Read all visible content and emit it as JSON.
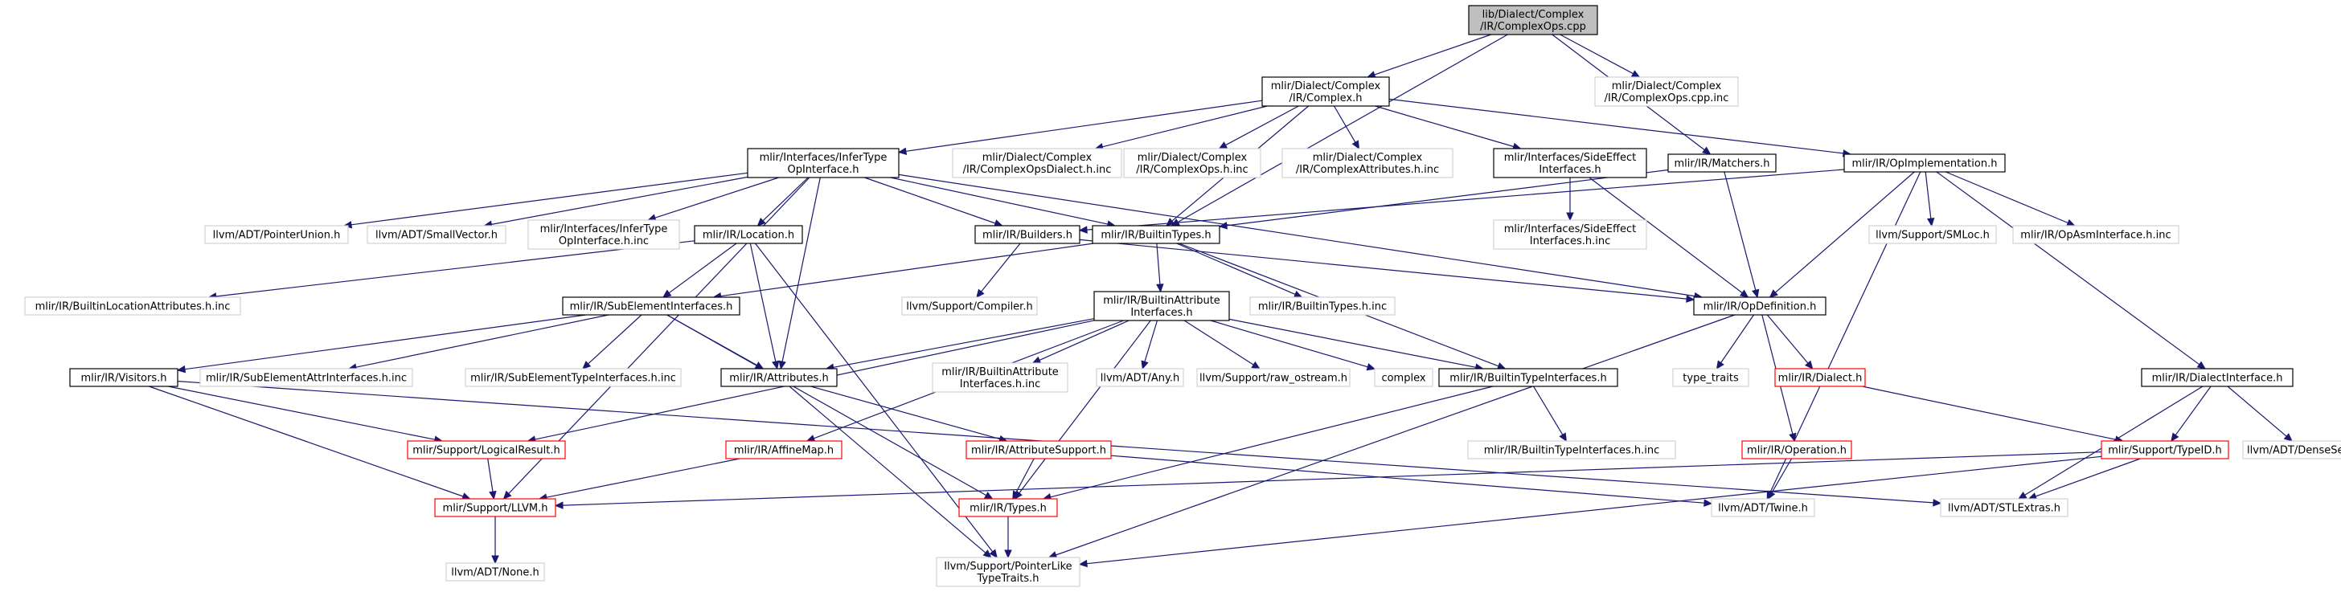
{
  "diagram": {
    "root": "complexops_cpp",
    "colors": {
      "background": "#ffffff",
      "root_fill": "#bfbfbf",
      "root_border": "#000000",
      "normal_border": "#000000",
      "missing_border": "#d3d3d3",
      "truncated_border": "#ff0000",
      "edge": "#191970",
      "text": "#000000"
    },
    "nodes": [
      {
        "id": "complexops_cpp",
        "kind": "root",
        "lines": [
          "lib/Dialect/Complex",
          "/IR/ComplexOps.cpp"
        ]
      },
      {
        "id": "complex_h",
        "kind": "normal",
        "lines": [
          "mlir/Dialect/Complex",
          "/IR/Complex.h"
        ]
      },
      {
        "id": "complexops_cpp_inc",
        "kind": "missing",
        "lines": [
          "mlir/Dialect/Complex",
          "/IR/ComplexOps.cpp.inc"
        ]
      },
      {
        "id": "infertype",
        "kind": "normal",
        "lines": [
          "mlir/Interfaces/InferType",
          "OpInterface.h"
        ]
      },
      {
        "id": "complexopsdialect_inc",
        "kind": "missing",
        "lines": [
          "mlir/Dialect/Complex",
          "/IR/ComplexOpsDialect.h.inc"
        ]
      },
      {
        "id": "complexops_h_inc",
        "kind": "missing",
        "lines": [
          "mlir/Dialect/Complex",
          "/IR/ComplexOps.h.inc"
        ]
      },
      {
        "id": "complexattrs_inc",
        "kind": "missing",
        "lines": [
          "mlir/Dialect/Complex",
          "/IR/ComplexAttributes.h.inc"
        ]
      },
      {
        "id": "sideeffect",
        "kind": "normal",
        "lines": [
          "mlir/Interfaces/SideEffect",
          "Interfaces.h"
        ]
      },
      {
        "id": "matchers",
        "kind": "normal",
        "lines": [
          "mlir/IR/Matchers.h"
        ]
      },
      {
        "id": "opimpl",
        "kind": "normal",
        "lines": [
          "mlir/IR/OpImplementation.h"
        ]
      },
      {
        "id": "pointerunion",
        "kind": "missing",
        "lines": [
          "llvm/ADT/PointerUnion.h"
        ]
      },
      {
        "id": "smallvector",
        "kind": "missing",
        "lines": [
          "llvm/ADT/SmallVector.h"
        ]
      },
      {
        "id": "infertype_inc",
        "kind": "missing",
        "lines": [
          "mlir/Interfaces/InferType",
          "OpInterface.h.inc"
        ]
      },
      {
        "id": "location",
        "kind": "normal",
        "lines": [
          "mlir/IR/Location.h"
        ]
      },
      {
        "id": "builders",
        "kind": "normal",
        "lines": [
          "mlir/IR/Builders.h"
        ]
      },
      {
        "id": "builtintypes",
        "kind": "normal",
        "lines": [
          "mlir/IR/BuiltinTypes.h"
        ]
      },
      {
        "id": "sideeffect_inc",
        "kind": "missing",
        "lines": [
          "mlir/Interfaces/SideEffect",
          "Interfaces.h.inc"
        ]
      },
      {
        "id": "smloc",
        "kind": "missing",
        "lines": [
          "llvm/Support/SMLoc.h"
        ]
      },
      {
        "id": "opasm_inc",
        "kind": "missing",
        "lines": [
          "mlir/IR/OpAsmInterface.h.inc"
        ]
      },
      {
        "id": "builtinlocattrs_inc",
        "kind": "missing",
        "lines": [
          "mlir/IR/BuiltinLocationAttributes.h.inc"
        ]
      },
      {
        "id": "compiler",
        "kind": "missing",
        "lines": [
          "llvm/Support/Compiler.h"
        ]
      },
      {
        "id": "builtinattrifaces",
        "kind": "normal",
        "lines": [
          "mlir/IR/BuiltinAttribute",
          "Interfaces.h"
        ]
      },
      {
        "id": "builtintypes_inc",
        "kind": "missing",
        "lines": [
          "mlir/IR/BuiltinTypes.h.inc"
        ]
      },
      {
        "id": "opdefinition",
        "kind": "normal",
        "lines": [
          "mlir/IR/OpDefinition.h"
        ]
      },
      {
        "id": "subelement",
        "kind": "normal",
        "lines": [
          "mlir/IR/SubElementInterfaces.h"
        ]
      },
      {
        "id": "dialectiface",
        "kind": "normal",
        "lines": [
          "mlir/IR/DialectInterface.h"
        ]
      },
      {
        "id": "visitors",
        "kind": "normal",
        "lines": [
          "mlir/IR/Visitors.h"
        ]
      },
      {
        "id": "subelemattr_inc",
        "kind": "missing",
        "lines": [
          "mlir/IR/SubElementAttrInterfaces.h.inc"
        ]
      },
      {
        "id": "subelemtype_inc",
        "kind": "missing",
        "lines": [
          "mlir/IR/SubElementTypeInterfaces.h.inc"
        ]
      },
      {
        "id": "attributes",
        "kind": "normal",
        "lines": [
          "mlir/IR/Attributes.h"
        ]
      },
      {
        "id": "builtinattrifaces_inc",
        "kind": "missing",
        "lines": [
          "mlir/IR/BuiltinAttribute",
          "Interfaces.h.inc"
        ]
      },
      {
        "id": "any",
        "kind": "missing",
        "lines": [
          "llvm/ADT/Any.h"
        ]
      },
      {
        "id": "raw_ostream",
        "kind": "missing",
        "lines": [
          "llvm/Support/raw_ostream.h"
        ]
      },
      {
        "id": "complex",
        "kind": "missing",
        "lines": [
          "complex"
        ]
      },
      {
        "id": "builtintypeifaces",
        "kind": "normal",
        "lines": [
          "mlir/IR/BuiltinTypeInterfaces.h"
        ]
      },
      {
        "id": "type_traits",
        "kind": "missing",
        "lines": [
          "type_traits"
        ]
      },
      {
        "id": "dialect",
        "kind": "truncated",
        "lines": [
          "mlir/IR/Dialect.h"
        ]
      },
      {
        "id": "logicalresult",
        "kind": "truncated",
        "lines": [
          "mlir/Support/LogicalResult.h"
        ]
      },
      {
        "id": "affinemap",
        "kind": "truncated",
        "lines": [
          "mlir/IR/AffineMap.h"
        ]
      },
      {
        "id": "attrsupport",
        "kind": "truncated",
        "lines": [
          "mlir/IR/AttributeSupport.h"
        ]
      },
      {
        "id": "builtintypeifaces_inc",
        "kind": "missing",
        "lines": [
          "mlir/IR/BuiltinTypeInterfaces.h.inc"
        ]
      },
      {
        "id": "operation",
        "kind": "truncated",
        "lines": [
          "mlir/IR/Operation.h"
        ]
      },
      {
        "id": "typeid",
        "kind": "truncated",
        "lines": [
          "mlir/Support/TypeID.h"
        ]
      },
      {
        "id": "denseset",
        "kind": "missing",
        "lines": [
          "llvm/ADT/DenseSet.h"
        ]
      },
      {
        "id": "llvm_h",
        "kind": "truncated",
        "lines": [
          "mlir/Support/LLVM.h"
        ]
      },
      {
        "id": "types",
        "kind": "truncated",
        "lines": [
          "mlir/IR/Types.h"
        ]
      },
      {
        "id": "twine",
        "kind": "missing",
        "lines": [
          "llvm/ADT/Twine.h"
        ]
      },
      {
        "id": "stlextras",
        "kind": "missing",
        "lines": [
          "llvm/ADT/STLExtras.h"
        ]
      },
      {
        "id": "none",
        "kind": "missing",
        "lines": [
          "llvm/ADT/None.h"
        ]
      },
      {
        "id": "pointerlike",
        "kind": "missing",
        "lines": [
          "llvm/Support/PointerLike",
          "TypeTraits.h"
        ]
      }
    ],
    "edges": [
      [
        "complexops_cpp",
        "complex_h"
      ],
      [
        "complexops_cpp",
        "complexops_cpp_inc"
      ],
      [
        "complexops_cpp",
        "matchers"
      ],
      [
        "complexops_cpp",
        "builtintypes"
      ],
      [
        "complex_h",
        "infertype"
      ],
      [
        "complex_h",
        "complexopsdialect_inc"
      ],
      [
        "complex_h",
        "complexops_h_inc"
      ],
      [
        "complex_h",
        "complexattrs_inc"
      ],
      [
        "complex_h",
        "sideeffect"
      ],
      [
        "complex_h",
        "opimpl"
      ],
      [
        "complex_h",
        "builtintypes"
      ],
      [
        "infertype",
        "pointerunion"
      ],
      [
        "infertype",
        "smallvector"
      ],
      [
        "infertype",
        "infertype_inc"
      ],
      [
        "infertype",
        "location"
      ],
      [
        "infertype",
        "builders"
      ],
      [
        "infertype",
        "builtintypes"
      ],
      [
        "infertype",
        "opdefinition"
      ],
      [
        "infertype",
        "attributes"
      ],
      [
        "infertype",
        "llvm_h"
      ],
      [
        "sideeffect",
        "sideeffect_inc"
      ],
      [
        "sideeffect",
        "opdefinition"
      ],
      [
        "matchers",
        "builtintypes"
      ],
      [
        "matchers",
        "opdefinition"
      ],
      [
        "opimpl",
        "builders"
      ],
      [
        "opimpl",
        "smloc"
      ],
      [
        "opimpl",
        "opasm_inc"
      ],
      [
        "opimpl",
        "opdefinition"
      ],
      [
        "opimpl",
        "dialectiface"
      ],
      [
        "opimpl",
        "twine"
      ],
      [
        "location",
        "builtinlocattrs_inc"
      ],
      [
        "location",
        "subelement"
      ],
      [
        "location",
        "attributes"
      ],
      [
        "location",
        "pointerlike"
      ],
      [
        "builders",
        "compiler"
      ],
      [
        "builders",
        "opdefinition"
      ],
      [
        "builtintypes",
        "builtinattrifaces"
      ],
      [
        "builtintypes",
        "builtintypes_inc"
      ],
      [
        "builtintypes",
        "builtintypeifaces"
      ],
      [
        "builtintypes",
        "subelement"
      ],
      [
        "builtinattrifaces",
        "builtinattrifaces_inc"
      ],
      [
        "builtinattrifaces",
        "any"
      ],
      [
        "builtinattrifaces",
        "raw_ostream"
      ],
      [
        "builtinattrifaces",
        "complex"
      ],
      [
        "builtinattrifaces",
        "builtintypeifaces"
      ],
      [
        "builtinattrifaces",
        "attributes"
      ],
      [
        "builtinattrifaces",
        "affinemap"
      ],
      [
        "builtinattrifaces",
        "types"
      ],
      [
        "builtinattrifaces",
        "logicalresult"
      ],
      [
        "opdefinition",
        "type_traits"
      ],
      [
        "opdefinition",
        "dialect"
      ],
      [
        "opdefinition",
        "operation"
      ],
      [
        "opdefinition",
        "pointerlike"
      ],
      [
        "subelement",
        "visitors"
      ],
      [
        "subelement",
        "subelemattr_inc"
      ],
      [
        "subelement",
        "subelemtype_inc"
      ],
      [
        "subelement",
        "attributes"
      ],
      [
        "subelement",
        "types"
      ],
      [
        "dialectiface",
        "typeid"
      ],
      [
        "dialectiface",
        "denseset"
      ],
      [
        "dialectiface",
        "stlextras"
      ],
      [
        "visitors",
        "logicalresult"
      ],
      [
        "visitors",
        "llvm_h"
      ],
      [
        "visitors",
        "stlextras"
      ],
      [
        "attributes",
        "attrsupport"
      ],
      [
        "attributes",
        "pointerlike"
      ],
      [
        "builtintypeifaces",
        "builtintypeifaces_inc"
      ],
      [
        "builtintypeifaces",
        "types"
      ],
      [
        "dialect",
        "typeid"
      ],
      [
        "logicalresult",
        "llvm_h"
      ],
      [
        "affinemap",
        "llvm_h"
      ],
      [
        "attrsupport",
        "types"
      ],
      [
        "attrsupport",
        "twine"
      ],
      [
        "operation",
        "twine"
      ],
      [
        "typeid",
        "llvm_h"
      ],
      [
        "typeid",
        "stlextras"
      ],
      [
        "typeid",
        "pointerlike"
      ],
      [
        "llvm_h",
        "none"
      ],
      [
        "types",
        "pointerlike"
      ]
    ]
  }
}
